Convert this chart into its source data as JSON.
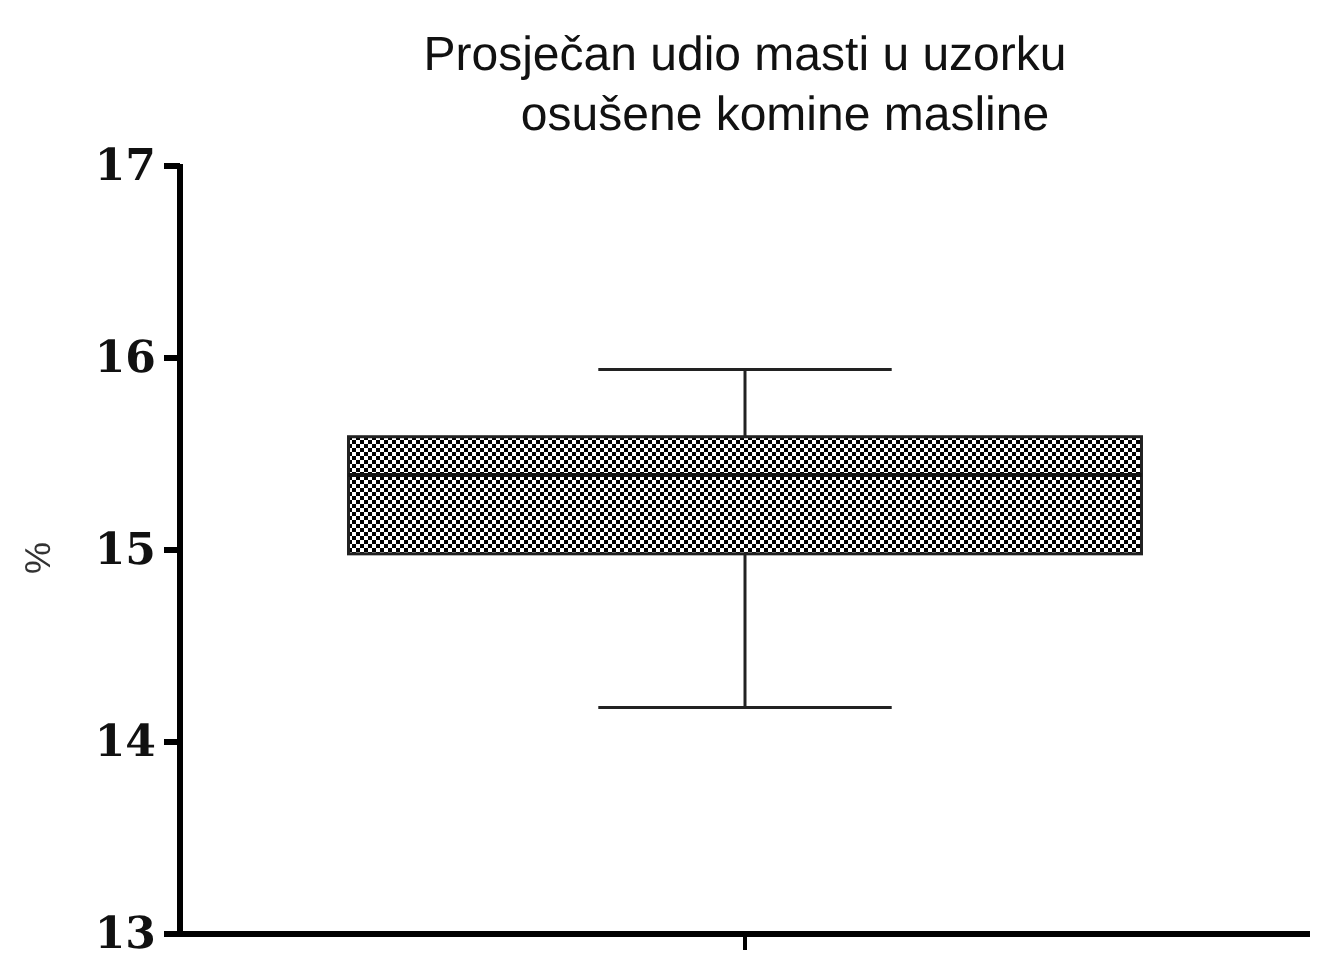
{
  "chart_data": {
    "type": "box",
    "title": "Prosječan udio masti u uzorku\nosušene komine masline",
    "ylabel": "%",
    "categories": [
      null
    ],
    "boxes": [
      {
        "low": 14.18,
        "q1": 14.98,
        "median": 15.39,
        "q3": 15.59,
        "high": 15.94
      }
    ],
    "ylim": [
      13,
      17
    ],
    "yticks": [
      13,
      14,
      15,
      16,
      17
    ]
  }
}
